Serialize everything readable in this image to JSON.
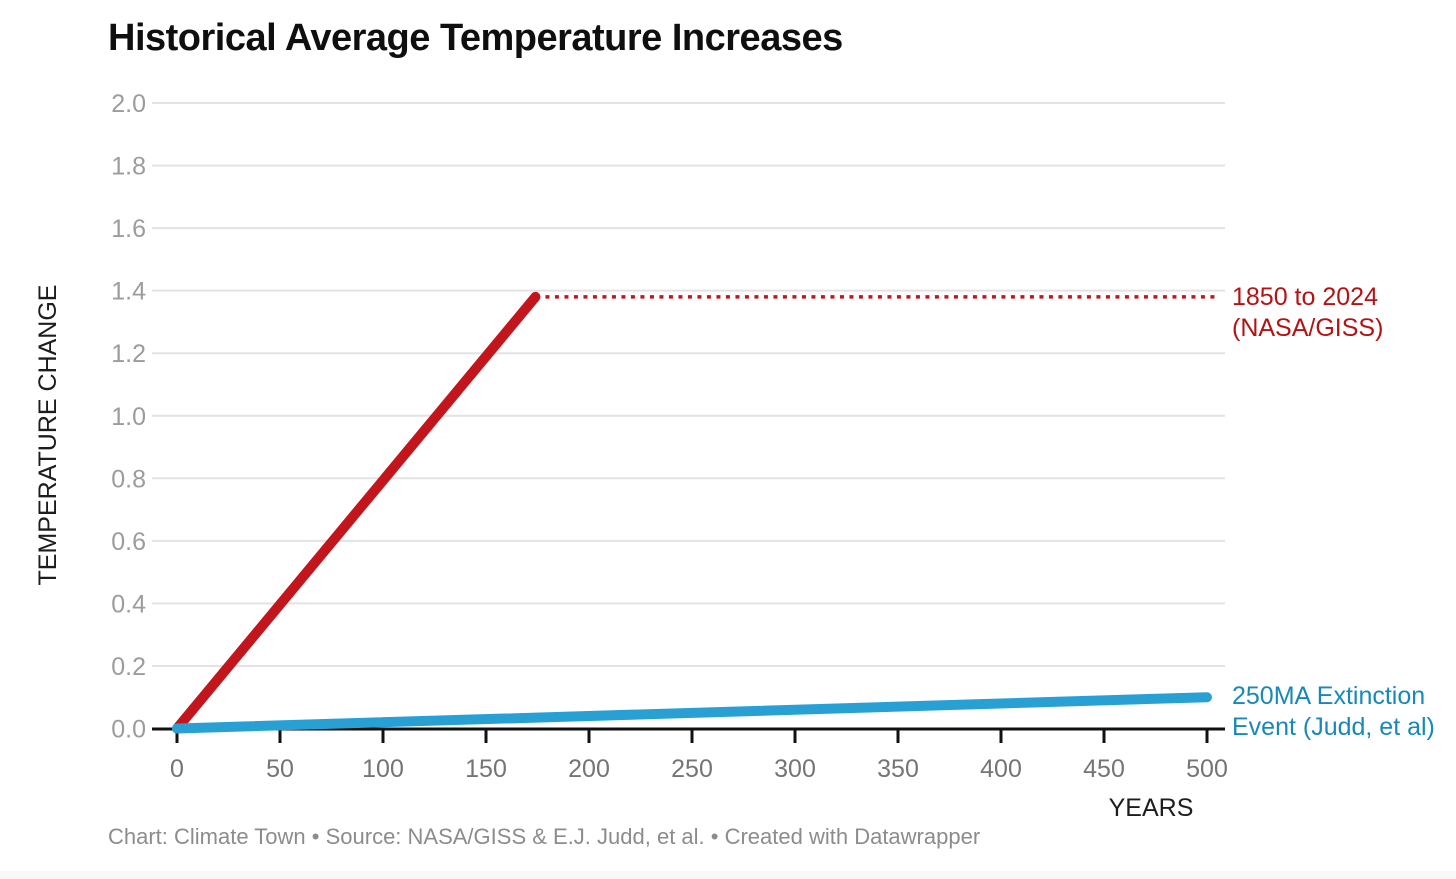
{
  "title": "Historical Average Temperature Increases",
  "footer": "Chart: Climate Town • Source: NASA/GISS & E.J. Judd, et al. • Created with Datawrapper",
  "chart_data": {
    "type": "line",
    "title": "Historical Average Temperature Increases",
    "xlabel": "YEARS",
    "ylabel": "TEMPERATURE CHANGE",
    "xlim": [
      0,
      500
    ],
    "ylim": [
      0,
      2.0
    ],
    "grid": "horizontal",
    "legend_position": "right-annotations",
    "x_ticks": [
      {
        "value": 0,
        "label": "0"
      },
      {
        "value": 50,
        "label": "50"
      },
      {
        "value": 100,
        "label": "100"
      },
      {
        "value": 150,
        "label": "150"
      },
      {
        "value": 200,
        "label": "200"
      },
      {
        "value": 250,
        "label": "250"
      },
      {
        "value": 300,
        "label": "300"
      },
      {
        "value": 350,
        "label": "350"
      },
      {
        "value": 400,
        "label": "400"
      },
      {
        "value": 450,
        "label": "450"
      },
      {
        "value": 500,
        "label": "500"
      }
    ],
    "y_ticks": [
      {
        "value": 2.0,
        "label": "2.0"
      },
      {
        "value": 1.8,
        "label": "1.8"
      },
      {
        "value": 1.6,
        "label": "1.6"
      },
      {
        "value": 1.4,
        "label": "1.4"
      },
      {
        "value": 1.2,
        "label": "1.2"
      },
      {
        "value": 1.0,
        "label": "1.0"
      },
      {
        "value": 0.8,
        "label": "0.8"
      },
      {
        "value": 0.6,
        "label": "0.6"
      },
      {
        "value": 0.4,
        "label": "0.4"
      },
      {
        "value": 0.2,
        "label": "0.2"
      },
      {
        "value": 0.0,
        "label": "0.0"
      }
    ],
    "series": [
      {
        "name": "1850 to 2024 (NASA/GISS)",
        "label": "1850 to 2024\n(NASA/GISS)",
        "color": "#c2161c",
        "label_color": "#b31314",
        "points": [
          [
            0,
            0.0
          ],
          [
            174,
            1.38
          ]
        ]
      },
      {
        "name": "250MA Extinction Event (Judd, et al)",
        "label": "250MA Extinction\nEvent (Judd, et al)",
        "color": "#29a0d4",
        "label_color": "#1789b8",
        "points": [
          [
            0,
            0.0
          ],
          [
            500,
            0.1
          ]
        ]
      }
    ],
    "dashed_reference": {
      "value": 1.38,
      "from_x": 174,
      "to_x": 505,
      "color": "#c2161c",
      "style": "dotted"
    },
    "colors": {
      "grid": "#e3e3e3",
      "axis": "#111111",
      "x_tick_label": "#757575",
      "y_tick_label": "#9c9c9c"
    }
  }
}
